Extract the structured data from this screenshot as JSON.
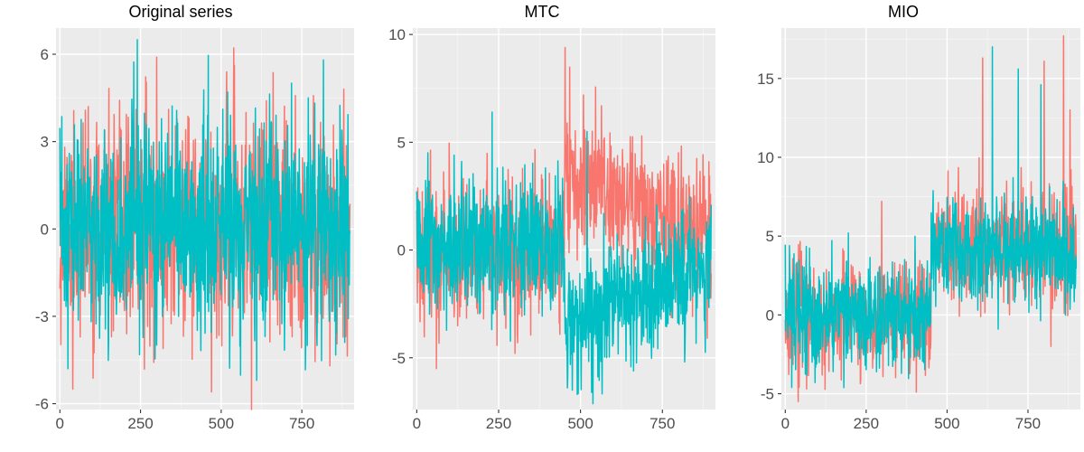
{
  "chart_data": [
    {
      "type": "line",
      "title": "Original series",
      "xlabel": "",
      "ylabel": "",
      "xlim": [
        -12,
        912
      ],
      "ylim": [
        -6.2,
        6.9
      ],
      "x_ticks": [
        0,
        250,
        500,
        750
      ],
      "x_tick_labels": [
        "0",
        "250",
        "500",
        "750"
      ],
      "y_ticks": [
        -6,
        -3,
        0,
        3,
        6
      ],
      "y_tick_labels": [
        "-6",
        "-3",
        "0",
        "3",
        "6"
      ],
      "grid": true,
      "series": [
        {
          "color": "#F8766D",
          "n": 900,
          "base": [
            [
              0,
              0
            ]
          ],
          "noise_sd": 1.8,
          "seed": 11,
          "spikes": [
            [
              300,
              5.9
            ],
            [
              470,
              -5.6
            ],
            [
              40,
              -5.5
            ],
            [
              880,
              4.8
            ],
            [
              640,
              4.4
            ]
          ]
        },
        {
          "color": "#00BFC4",
          "n": 900,
          "base": [
            [
              0,
              0
            ]
          ],
          "noise_sd": 1.75,
          "seed": 23,
          "spikes": [
            [
              240,
              6.5
            ],
            [
              25,
              -4.8
            ],
            [
              610,
              -5.2
            ],
            [
              520,
              4.7
            ]
          ]
        }
      ]
    },
    {
      "type": "line",
      "title": "MTC",
      "xlabel": "",
      "ylabel": "",
      "xlim": [
        -12,
        912
      ],
      "ylim": [
        -7.4,
        10.3
      ],
      "x_ticks": [
        0,
        250,
        500,
        750
      ],
      "x_tick_labels": [
        "0",
        "250",
        "500",
        "750"
      ],
      "y_ticks": [
        -5,
        0,
        5,
        10
      ],
      "y_tick_labels": [
        "-5",
        "0",
        "5",
        "10"
      ],
      "grid": true,
      "series": [
        {
          "color": "#F8766D",
          "n": 900,
          "base": [
            [
              0,
              0
            ],
            [
              450,
              0
            ],
            [
              451,
              3.7
            ],
            [
              900,
              0.5
            ]
          ],
          "noise_sd": 1.6,
          "seed": 37,
          "spikes": [
            [
              453,
              9.4
            ],
            [
              60,
              -5.5
            ],
            [
              300,
              -4.8
            ]
          ]
        },
        {
          "color": "#00BFC4",
          "n": 900,
          "base": [
            [
              0,
              0
            ],
            [
              450,
              0
            ],
            [
              451,
              -3.7
            ],
            [
              900,
              -0.5
            ]
          ],
          "noise_sd": 1.55,
          "seed": 51,
          "spikes": [
            [
              490,
              -6.7
            ],
            [
              460,
              -6.4
            ],
            [
              230,
              6.4
            ],
            [
              520,
              5.5
            ]
          ]
        }
      ]
    },
    {
      "type": "line",
      "title": "MIO",
      "xlabel": "",
      "ylabel": "",
      "xlim": [
        -12,
        912
      ],
      "ylim": [
        -6.0,
        18.2
      ],
      "x_ticks": [
        0,
        250,
        500,
        750
      ],
      "x_tick_labels": [
        "0",
        "250",
        "500",
        "750"
      ],
      "y_ticks": [
        -5,
        0,
        5,
        10,
        15
      ],
      "y_tick_labels": [
        "-5",
        "0",
        "5",
        "10",
        "15"
      ],
      "grid": true,
      "series": [
        {
          "color": "#F8766D",
          "n": 900,
          "base": [
            [
              0,
              0
            ],
            [
              450,
              0
            ],
            [
              451,
              4.4
            ],
            [
              900,
              4.4
            ]
          ],
          "noise_sd": 1.75,
          "seed": 67,
          "spikes": [
            [
              860,
              17.7
            ],
            [
              610,
              16.3
            ],
            [
              800,
              16.1
            ],
            [
              40,
              -5.5
            ],
            [
              880,
              13.0
            ]
          ]
        },
        {
          "color": "#00BFC4",
          "n": 900,
          "base": [
            [
              0,
              0
            ],
            [
              450,
              0
            ],
            [
              451,
              4.0
            ],
            [
              900,
              4.0
            ]
          ],
          "noise_sd": 1.7,
          "seed": 79,
          "spikes": [
            [
              640,
              17.0
            ],
            [
              720,
              15.6
            ],
            [
              20,
              -4.6
            ],
            [
              790,
              14.6
            ]
          ]
        }
      ]
    }
  ]
}
